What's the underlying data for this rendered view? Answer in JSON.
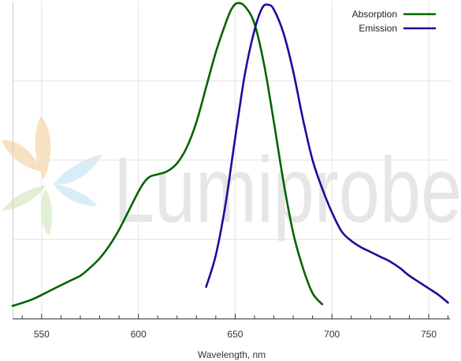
{
  "watermark": {
    "text": "Lumiprobe",
    "colors": {
      "orange": "#f7d9b0",
      "blue": "#cfe9f5",
      "green": "#d9ebc9",
      "text": "#e6e6e6"
    }
  },
  "chart_data": {
    "type": "line",
    "title": "",
    "xlabel": "Wavelength, nm",
    "ylabel": "",
    "xlim": [
      535,
      761
    ],
    "ylim": [
      0,
      1
    ],
    "x_ticks": [
      550,
      600,
      650,
      700,
      750
    ],
    "grid": {
      "vertical": true,
      "horizontal": true,
      "h_lines": [
        0.25,
        0.5,
        0.75
      ]
    },
    "legend": {
      "position": "top-right"
    },
    "series": [
      {
        "name": "Absorption",
        "color": "#006400",
        "points": [
          [
            535,
            0.04
          ],
          [
            545,
            0.06
          ],
          [
            555,
            0.09
          ],
          [
            565,
            0.12
          ],
          [
            570,
            0.135
          ],
          [
            575,
            0.16
          ],
          [
            580,
            0.19
          ],
          [
            585,
            0.23
          ],
          [
            590,
            0.28
          ],
          [
            595,
            0.34
          ],
          [
            600,
            0.4
          ],
          [
            603,
            0.43
          ],
          [
            606,
            0.448
          ],
          [
            610,
            0.455
          ],
          [
            615,
            0.465
          ],
          [
            620,
            0.49
          ],
          [
            625,
            0.54
          ],
          [
            630,
            0.62
          ],
          [
            635,
            0.73
          ],
          [
            640,
            0.84
          ],
          [
            645,
            0.93
          ],
          [
            648,
            0.975
          ],
          [
            651,
            0.995
          ],
          [
            655,
            0.985
          ],
          [
            660,
            0.93
          ],
          [
            665,
            0.8
          ],
          [
            670,
            0.62
          ],
          [
            675,
            0.43
          ],
          [
            680,
            0.27
          ],
          [
            685,
            0.16
          ],
          [
            690,
            0.08
          ],
          [
            695,
            0.045
          ]
        ]
      },
      {
        "name": "Emission",
        "color": "#1a0d99",
        "points": [
          [
            635,
            0.1
          ],
          [
            640,
            0.2
          ],
          [
            645,
            0.36
          ],
          [
            650,
            0.57
          ],
          [
            655,
            0.77
          ],
          [
            660,
            0.91
          ],
          [
            664,
            0.98
          ],
          [
            667,
            0.99
          ],
          [
            670,
            0.975
          ],
          [
            675,
            0.9
          ],
          [
            680,
            0.78
          ],
          [
            685,
            0.63
          ],
          [
            690,
            0.5
          ],
          [
            695,
            0.41
          ],
          [
            700,
            0.335
          ],
          [
            705,
            0.275
          ],
          [
            710,
            0.245
          ],
          [
            715,
            0.225
          ],
          [
            720,
            0.21
          ],
          [
            725,
            0.195
          ],
          [
            730,
            0.18
          ],
          [
            735,
            0.16
          ],
          [
            740,
            0.135
          ],
          [
            745,
            0.115
          ],
          [
            750,
            0.095
          ],
          [
            755,
            0.075
          ],
          [
            760,
            0.05
          ]
        ]
      }
    ]
  }
}
